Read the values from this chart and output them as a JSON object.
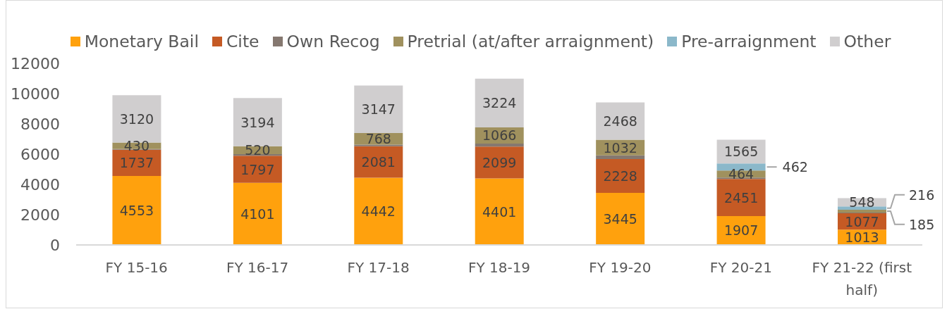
{
  "chart_data": {
    "type": "bar",
    "stacked": true,
    "categories": [
      "FY 15-16",
      "FY 16-17",
      "FY 17-18",
      "FY 18-19",
      "FY 19-20",
      "FY 20-21",
      "FY 21-22 (first half)"
    ],
    "series": [
      {
        "name": "Monetary Bail",
        "color": "#ffa10d",
        "values": [
          4553,
          4101,
          4442,
          4401,
          3445,
          1907,
          1013
        ],
        "value_labels": [
          "4553",
          "4101",
          "4442",
          "4401",
          "3445",
          "1907",
          "1013"
        ]
      },
      {
        "name": "Cite",
        "color": "#c55a24",
        "values": [
          1737,
          1797,
          2081,
          2099,
          2228,
          2451,
          1077
        ],
        "value_labels": [
          "1737",
          "1797",
          "2081",
          "2099",
          "2228",
          "2451",
          "1077"
        ]
      },
      {
        "name": "Own Recog",
        "color": "#857870",
        "values": [
          50,
          100,
          100,
          200,
          250,
          100,
          50
        ]
      },
      {
        "name": "Pretrial (at/after arraignment)",
        "color": "#a0915e",
        "values": [
          430,
          520,
          768,
          1066,
          1032,
          464,
          185
        ],
        "value_labels": [
          "430",
          "520",
          "768",
          "1066",
          "1032",
          "464",
          "185"
        ]
      },
      {
        "name": "Pre-arraignment",
        "color": "#8bb8ca",
        "values": [
          null,
          null,
          null,
          null,
          null,
          462,
          216
        ],
        "value_labels": [
          null,
          null,
          null,
          null,
          null,
          "462",
          "216"
        ]
      },
      {
        "name": "Other",
        "color": "#d0cecf",
        "values": [
          3120,
          3194,
          3147,
          3224,
          2468,
          1565,
          548
        ],
        "value_labels": [
          "3120",
          "3194",
          "3147",
          "3224",
          "2468",
          "1565",
          "548"
        ]
      }
    ],
    "ylim": [
      0,
      12000
    ],
    "yticks": [
      0,
      2000,
      4000,
      6000,
      8000,
      10000,
      12000
    ],
    "grid": false,
    "legend": "top"
  }
}
